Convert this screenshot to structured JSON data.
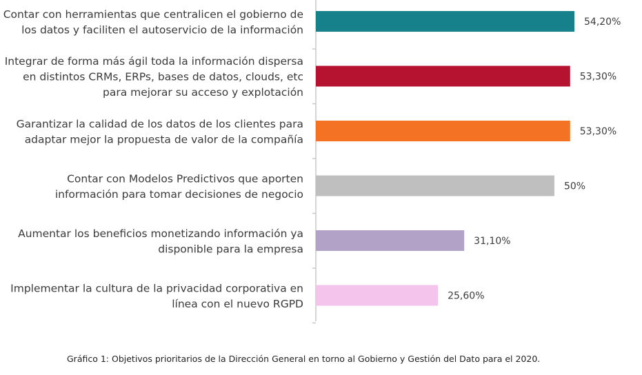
{
  "caption": "Gráfico 1: Objetivos prioritarios de la Dirección General en torno al Gobierno y Gestión del Dato para el 2020.",
  "chart_data": {
    "type": "bar",
    "orientation": "horizontal",
    "xlim": [
      0,
      55
    ],
    "categories": [
      [
        "Contar con herramientas que centralicen el gobierno de",
        "los datos y faciliten el autoservicio de la información"
      ],
      [
        "Integrar de forma más ágil toda la información dispersa",
        "en distintos CRMs, ERPs, bases de datos, clouds, etc",
        "para mejorar su acceso y explotación"
      ],
      [
        "Garantizar la calidad de los datos de los clientes para",
        "adaptar mejor la propuesta de valor de la compañía"
      ],
      [
        "Contar con Modelos Predictivos que aporten",
        "información para tomar decisiones de negocio"
      ],
      [
        "Aumentar los beneficios monetizando información ya",
        "disponible para la empresa"
      ],
      [
        "Implementar la cultura de la privacidad corporativa en",
        "línea con el nuevo RGPD"
      ]
    ],
    "values": [
      54.2,
      53.3,
      53.3,
      50,
      31.1,
      25.6
    ],
    "value_labels": [
      "54,20%",
      "53,30%",
      "53,30%",
      "50%",
      "31,10%",
      "25,60%"
    ],
    "colors": [
      "#17818b",
      "#b5132f",
      "#f47223",
      "#bfbfbf",
      "#b2a2c7",
      "#f4c4ec"
    ],
    "grid": false,
    "legend": "none"
  }
}
